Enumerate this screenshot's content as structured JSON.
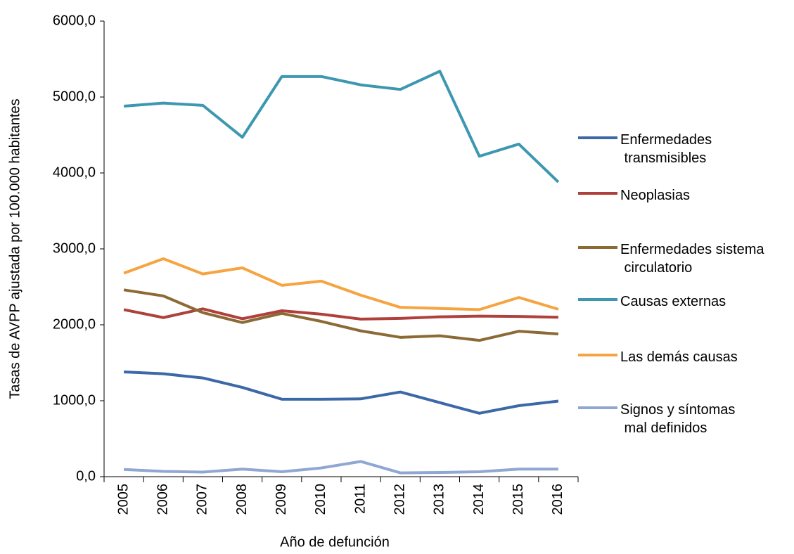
{
  "chart_data": {
    "type": "line",
    "xlabel": "Año de defunción",
    "ylabel": "Tasas de AVPP ajustada por 100.000 habitantes",
    "categories": [
      "2005",
      "2006",
      "2007",
      "2008",
      "2009",
      "2010",
      "2011",
      "2012",
      "2013",
      "2014",
      "2015",
      "2016"
    ],
    "series": [
      {
        "name": "Enfermedades transmisibles",
        "color": "#3c68a8",
        "values": [
          1380,
          1355,
          1300,
          1175,
          1020,
          1020,
          1025,
          1115,
          975,
          835,
          935,
          995
        ]
      },
      {
        "name": "Neoplasias",
        "color": "#b0403c",
        "values": [
          2200,
          2095,
          2210,
          2080,
          2185,
          2140,
          2075,
          2085,
          2105,
          2115,
          2110,
          2100
        ]
      },
      {
        "name": "Enfermedades sistema circulatorio",
        "color": "#8c6a35",
        "values": [
          2460,
          2380,
          2160,
          2030,
          2150,
          2045,
          1920,
          1835,
          1855,
          1795,
          1915,
          1880
        ]
      },
      {
        "name": "Causas externas",
        "color": "#3e97b0",
        "values": [
          4880,
          4920,
          4890,
          4470,
          5270,
          5270,
          5160,
          5100,
          5340,
          4220,
          4380,
          3880
        ]
      },
      {
        "name": "Las demás causas",
        "color": "#f6a441",
        "values": [
          2680,
          2870,
          2670,
          2750,
          2520,
          2575,
          2390,
          2230,
          2215,
          2200,
          2360,
          2205
        ]
      },
      {
        "name": "Signos y síntomas mal definidos",
        "color": "#8fa7d2",
        "values": [
          95,
          70,
          60,
          100,
          65,
          115,
          200,
          50,
          55,
          65,
          100,
          100
        ]
      }
    ],
    "ylim": [
      0,
      6000
    ],
    "yticks": [
      {
        "value": 0,
        "label": "0,0"
      },
      {
        "value": 1000,
        "label": "1000,0"
      },
      {
        "value": 2000,
        "label": "2000,0"
      },
      {
        "value": 3000,
        "label": "3000,0"
      },
      {
        "value": 4000,
        "label": "4000,0"
      },
      {
        "value": 5000,
        "label": "5000,0"
      },
      {
        "value": 6000,
        "label": "6000,0"
      }
    ],
    "legend": "right"
  }
}
